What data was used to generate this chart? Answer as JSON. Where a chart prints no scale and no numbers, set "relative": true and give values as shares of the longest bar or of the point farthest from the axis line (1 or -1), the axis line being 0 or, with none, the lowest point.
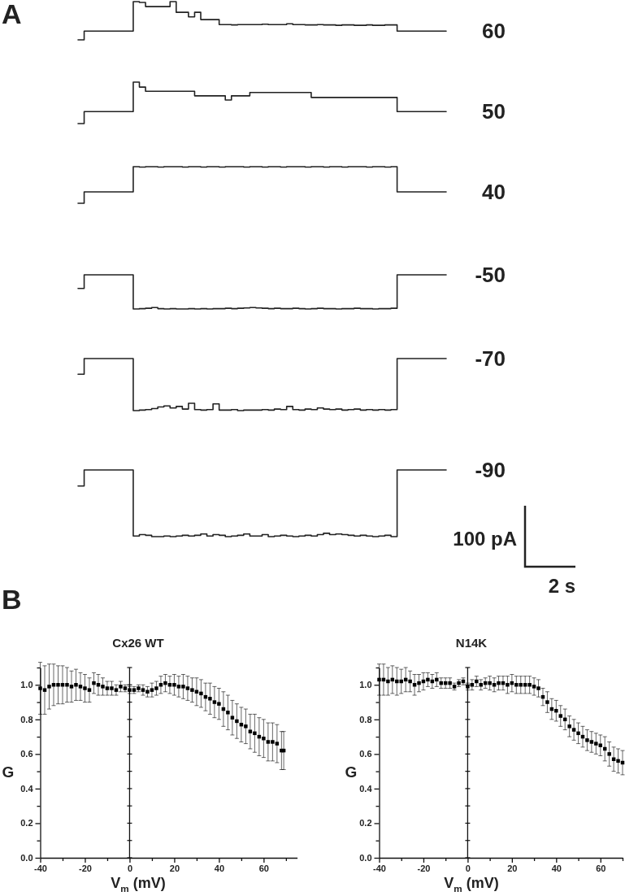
{
  "chart_data": [
    {
      "type": "step",
      "relative": true,
      "annotations": [
        "A"
      ],
      "categories": [
        null,
        null,
        null,
        null,
        null,
        null,
        null,
        null,
        null,
        null,
        null,
        null,
        null,
        null,
        null,
        null,
        null,
        null,
        null,
        null,
        null,
        null,
        null,
        null,
        null,
        null,
        null,
        null,
        null,
        null,
        null,
        null,
        null,
        null,
        null,
        null,
        null,
        null,
        null,
        null,
        null,
        null,
        null,
        null,
        null,
        null,
        null,
        null,
        null,
        null,
        null,
        null,
        null,
        null,
        null,
        null,
        null,
        null,
        null,
        null,
        null
      ],
      "series": [
        {
          "name": "60",
          "color": "#222222",
          "values": [
            0,
            0.23,
            0.23,
            0.23,
            0.23,
            0.23,
            0.23,
            0.23,
            0.23,
            1.0,
            0.98,
            0.87,
            0.87,
            0.87,
            0.87,
            1.0,
            0.72,
            0.72,
            0.6,
            0.72,
            0.53,
            0.53,
            0.53,
            0.4,
            0.4,
            0.39,
            0.4,
            0.4,
            0.4,
            0.4,
            0.41,
            0.4,
            0.4,
            0.4,
            0.42,
            0.4,
            0.4,
            0.39,
            0.39,
            0.4,
            0.39,
            0.39,
            0.38,
            0.39,
            0.39,
            0.38,
            0.38,
            0.39,
            0.38,
            0.38,
            0.39,
            0.39,
            0.23,
            0.23,
            0.23,
            0.23,
            0.23,
            0.23,
            0.23,
            0.23,
            0.23
          ]
        }
      ]
    },
    {
      "type": "step",
      "relative": true,
      "categories": [
        null,
        null,
        null,
        null,
        null,
        null,
        null,
        null,
        null,
        null,
        null,
        null,
        null,
        null,
        null,
        null,
        null,
        null,
        null,
        null,
        null,
        null,
        null,
        null,
        null,
        null,
        null,
        null,
        null,
        null,
        null,
        null,
        null,
        null,
        null,
        null,
        null,
        null,
        null,
        null,
        null,
        null,
        null,
        null,
        null,
        null,
        null,
        null,
        null,
        null,
        null,
        null,
        null,
        null,
        null,
        null,
        null,
        null,
        null,
        null,
        null
      ],
      "series": [
        {
          "name": "50",
          "color": "#222222",
          "values": [
            0,
            0.29,
            0.29,
            0.29,
            0.29,
            0.29,
            0.29,
            0.29,
            0.29,
            1.0,
            0.88,
            0.78,
            0.78,
            0.78,
            0.78,
            0.78,
            0.78,
            0.78,
            0.78,
            0.67,
            0.67,
            0.67,
            0.67,
            0.67,
            0.57,
            0.67,
            0.67,
            0.67,
            0.75,
            0.75,
            0.75,
            0.75,
            0.75,
            0.75,
            0.75,
            0.75,
            0.75,
            0.75,
            0.63,
            0.63,
            0.63,
            0.63,
            0.63,
            0.63,
            0.63,
            0.63,
            0.63,
            0.63,
            0.63,
            0.63,
            0.63,
            0.63,
            0.29,
            0.29,
            0.29,
            0.29,
            0.29,
            0.29,
            0.29,
            0.29,
            0.29
          ]
        }
      ]
    },
    {
      "type": "step",
      "relative": true,
      "categories": [
        null,
        null,
        null,
        null,
        null,
        null,
        null,
        null,
        null,
        null,
        null,
        null,
        null,
        null,
        null,
        null,
        null,
        null,
        null,
        null,
        null,
        null,
        null,
        null,
        null,
        null,
        null,
        null,
        null,
        null,
        null,
        null,
        null,
        null,
        null,
        null,
        null,
        null,
        null,
        null,
        null,
        null,
        null,
        null,
        null,
        null,
        null,
        null,
        null,
        null,
        null,
        null,
        null,
        null,
        null,
        null,
        null,
        null,
        null,
        null,
        null
      ],
      "series": [
        {
          "name": "40",
          "color": "#222222",
          "values": [
            0,
            0.31,
            0.31,
            0.31,
            0.31,
            0.31,
            0.31,
            0.31,
            0.31,
            1,
            0.99,
            1,
            1,
            0.99,
            1,
            1,
            1,
            0.99,
            1,
            1,
            0.99,
            1,
            1,
            0.99,
            1,
            1,
            1,
            0.99,
            1,
            1,
            0.99,
            1,
            1,
            0.99,
            1,
            1,
            1,
            0.99,
            1,
            1,
            0.99,
            1,
            1,
            0.99,
            1,
            1,
            1,
            0.99,
            1,
            1,
            0.99,
            1,
            0.31,
            0.31,
            0.31,
            0.31,
            0.31,
            0.31,
            0.31,
            0.31,
            0.31
          ]
        }
      ]
    },
    {
      "type": "step",
      "relative": true,
      "categories": [
        null,
        null,
        null,
        null,
        null,
        null,
        null,
        null,
        null,
        null,
        null,
        null,
        null,
        null,
        null,
        null,
        null,
        null,
        null,
        null,
        null,
        null,
        null,
        null,
        null,
        null,
        null,
        null,
        null,
        null,
        null,
        null,
        null,
        null,
        null,
        null,
        null,
        null,
        null,
        null,
        null,
        null,
        null,
        null,
        null,
        null,
        null,
        null,
        null,
        null,
        null,
        null,
        null,
        null,
        null,
        null,
        null,
        null,
        null,
        null,
        null
      ],
      "series": [
        {
          "name": "-50",
          "color": "#222222",
          "values": [
            0.6,
            1,
            1,
            1,
            1,
            1,
            1,
            1,
            1,
            0,
            0.01,
            0.02,
            0.04,
            0.01,
            0,
            0.01,
            0,
            0,
            0.01,
            0,
            0.01,
            0,
            0.01,
            0.01,
            0.02,
            0.01,
            0.02,
            0.03,
            0.04,
            0.03,
            0.02,
            0.01,
            0.02,
            0.01,
            0.01,
            0.02,
            0.01,
            0,
            0.01,
            0.02,
            0.01,
            0.01,
            0,
            0.01,
            0.01,
            0.02,
            0.01,
            0.01,
            0,
            0.01,
            0.01,
            0.02,
            1,
            1,
            1,
            1,
            1,
            1,
            1,
            1,
            1
          ]
        }
      ]
    },
    {
      "type": "step",
      "relative": true,
      "categories": [
        null,
        null,
        null,
        null,
        null,
        null,
        null,
        null,
        null,
        null,
        null,
        null,
        null,
        null,
        null,
        null,
        null,
        null,
        null,
        null,
        null,
        null,
        null,
        null,
        null,
        null,
        null,
        null,
        null,
        null,
        null,
        null,
        null,
        null,
        null,
        null,
        null,
        null,
        null,
        null,
        null,
        null,
        null,
        null,
        null,
        null,
        null,
        null,
        null,
        null,
        null,
        null,
        null,
        null,
        null,
        null,
        null,
        null,
        null,
        null,
        null
      ],
      "series": [
        {
          "name": "-70",
          "color": "#222222",
          "values": [
            0.7,
            1,
            1,
            1,
            1,
            1,
            1,
            1,
            1,
            0,
            0.01,
            0.02,
            0.04,
            0.07,
            0.09,
            0.05,
            0.08,
            0.03,
            0.14,
            0.02,
            0.01,
            0.02,
            0.13,
            0.01,
            0.01,
            0.02,
            0,
            0.01,
            0.01,
            0.01,
            0.02,
            0.01,
            0.03,
            0.02,
            0.08,
            0.02,
            0.01,
            0.03,
            0.02,
            0.05,
            0.03,
            0.02,
            0.03,
            0.01,
            0.02,
            0.03,
            0.01,
            0.02,
            0.01,
            0.02,
            0.01,
            0.02,
            1,
            1,
            1,
            1,
            1,
            1,
            1,
            1,
            1
          ]
        }
      ]
    },
    {
      "type": "step",
      "relative": true,
      "annotations": [
        "100 pA",
        "2 s"
      ],
      "categories": [
        null,
        null,
        null,
        null,
        null,
        null,
        null,
        null,
        null,
        null,
        null,
        null,
        null,
        null,
        null,
        null,
        null,
        null,
        null,
        null,
        null,
        null,
        null,
        null,
        null,
        null,
        null,
        null,
        null,
        null,
        null,
        null,
        null,
        null,
        null,
        null,
        null,
        null,
        null,
        null,
        null,
        null,
        null,
        null,
        null,
        null,
        null,
        null,
        null,
        null,
        null,
        null,
        null,
        null,
        null,
        null,
        null,
        null,
        null,
        null,
        null
      ],
      "series": [
        {
          "name": "-90",
          "color": "#222222",
          "values": [
            0.76,
            1,
            1,
            1,
            1,
            1,
            1,
            1,
            1,
            0.01,
            0.03,
            0.02,
            0,
            0,
            0.01,
            0,
            0.01,
            0.02,
            0.01,
            0.02,
            0.04,
            0.01,
            0.03,
            0.02,
            0,
            0.01,
            0.02,
            0.04,
            0.01,
            0.01,
            0.03,
            0,
            0.01,
            0.02,
            0.01,
            0,
            0.01,
            0.02,
            0.01,
            0.03,
            0.05,
            0.03,
            0.04,
            0.03,
            0.02,
            0.01,
            0.02,
            0.01,
            0,
            0.01,
            0.02,
            0,
            1,
            1,
            1,
            1,
            1,
            1,
            1,
            1,
            1
          ]
        }
      ]
    },
    {
      "type": "scatter",
      "title": "Cx26 WT",
      "xlabel": "V$_{m}$ (mV)",
      "ylabel": "G",
      "annotations": [
        "B"
      ],
      "marker": "square",
      "xlim": [
        -40,
        75
      ],
      "ylim": [
        0,
        1.1
      ],
      "xticks": [
        -40,
        {
          "value": -30,
          "label": null
        },
        -20,
        {
          "value": -10,
          "label": null
        },
        0,
        {
          "value": 10,
          "label": null
        },
        20,
        {
          "value": 30,
          "label": null
        },
        40,
        {
          "value": 50,
          "label": null
        },
        60,
        {
          "value": 70,
          "label": null
        }
      ],
      "yticks": [
        {
          "value": 0,
          "label": "0.0"
        },
        {
          "value": 0.1,
          "label": null
        },
        0.2,
        {
          "value": 0.3,
          "label": null
        },
        0.4,
        {
          "value": 0.5,
          "label": null
        },
        0.6,
        {
          "value": 0.7,
          "label": null
        },
        0.8,
        {
          "value": 0.9,
          "label": null
        },
        {
          "value": 1,
          "label": "1.0"
        },
        {
          "value": 1.1,
          "label": null
        }
      ],
      "ref_lines": [
        {
          "axis": "x",
          "value": 0
        }
      ],
      "x": [
        -40,
        -38,
        -36,
        -34,
        -32,
        -30,
        -28,
        -26,
        -24,
        -22,
        -20,
        -18,
        -16,
        -14,
        -12,
        -10,
        -8,
        -6,
        -4,
        -2,
        0,
        2,
        4,
        6,
        8,
        10,
        12,
        14,
        16,
        18,
        20,
        22,
        24,
        26,
        28,
        30,
        32,
        34,
        36,
        38,
        40,
        42,
        44,
        46,
        48,
        50,
        52,
        54,
        56,
        58,
        60,
        62,
        64,
        66,
        68,
        69
      ],
      "series": [
        {
          "color": "#000000",
          "values": [
            0.98,
            0.97,
            0.99,
            1.0,
            1.0,
            1.0,
            1.0,
            0.99,
            1.0,
            0.99,
            0.98,
            0.97,
            1.01,
            1.0,
            0.99,
            0.98,
            0.98,
            0.97,
            0.99,
            0.98,
            0.97,
            0.97,
            0.98,
            0.97,
            0.96,
            0.97,
            0.98,
            1.0,
            1.01,
            1.0,
            1.0,
            0.99,
            0.99,
            0.98,
            0.97,
            0.96,
            0.95,
            0.93,
            0.92,
            0.9,
            0.89,
            0.86,
            0.84,
            0.81,
            0.79,
            0.77,
            0.76,
            0.73,
            0.72,
            0.7,
            0.69,
            0.67,
            0.67,
            0.66,
            0.62,
            0.62
          ],
          "errors": [
            0.15,
            0.14,
            0.13,
            0.12,
            0.11,
            0.11,
            0.1,
            0.09,
            0.09,
            0.08,
            0.08,
            0.07,
            0.06,
            0.06,
            0.05,
            0.04,
            0.04,
            0.03,
            0.03,
            0.02,
            0.02,
            0.02,
            0.02,
            0.03,
            0.03,
            0.04,
            0.04,
            0.05,
            0.05,
            0.05,
            0.06,
            0.06,
            0.07,
            0.07,
            0.07,
            0.08,
            0.08,
            0.08,
            0.09,
            0.09,
            0.09,
            0.1,
            0.1,
            0.1,
            0.1,
            0.1,
            0.1,
            0.1,
            0.11,
            0.11,
            0.11,
            0.11,
            0.11,
            0.11,
            0.11,
            0.11
          ]
        }
      ]
    },
    {
      "type": "scatter",
      "title": "N14K",
      "xlabel": "V$_{m}$ (mV)",
      "ylabel": "G",
      "marker": "square",
      "xlim": [
        -40,
        70
      ],
      "ylim": [
        0,
        1.1
      ],
      "xticks": [
        -40,
        {
          "value": -30,
          "label": null
        },
        -20,
        {
          "value": -10,
          "label": null
        },
        0,
        {
          "value": 10,
          "label": null
        },
        20,
        {
          "value": 30,
          "label": null
        },
        40,
        {
          "value": 50,
          "label": null
        },
        60,
        {
          "value": 70,
          "label": null
        }
      ],
      "yticks": [
        {
          "value": 0,
          "label": "0.0"
        },
        {
          "value": 0.1,
          "label": null
        },
        0.2,
        {
          "value": 0.3,
          "label": null
        },
        0.4,
        {
          "value": 0.5,
          "label": null
        },
        0.6,
        {
          "value": 0.7,
          "label": null
        },
        0.8,
        {
          "value": 0.9,
          "label": null
        },
        {
          "value": 1,
          "label": "1.0"
        },
        {
          "value": 1.1,
          "label": null
        }
      ],
      "ref_lines": [
        {
          "axis": "x",
          "value": 0
        }
      ],
      "x": [
        -40,
        -38,
        -36,
        -34,
        -32,
        -30,
        -28,
        -26,
        -24,
        -22,
        -20,
        -18,
        -16,
        -14,
        -12,
        -10,
        -8,
        -6,
        -4,
        -2,
        0,
        2,
        4,
        6,
        8,
        10,
        12,
        14,
        16,
        18,
        20,
        22,
        24,
        26,
        28,
        30,
        32,
        34,
        36,
        38,
        40,
        42,
        44,
        46,
        48,
        50,
        52,
        54,
        56,
        58,
        60,
        62,
        64,
        66,
        68,
        70
      ],
      "series": [
        {
          "color": "#000000",
          "values": [
            1.03,
            1.03,
            1.02,
            1.03,
            1.02,
            1.02,
            1.03,
            1.02,
            1.0,
            1.01,
            1.02,
            1.03,
            1.02,
            1.03,
            1.01,
            1.01,
            1.01,
            0.99,
            1.01,
            1.02,
            0.99,
            1.0,
            1.02,
            1.0,
            1.01,
            1.01,
            1.0,
            1.01,
            1.01,
            1.0,
            1.01,
            1.0,
            1.0,
            1.0,
            1.0,
            0.99,
            0.98,
            0.93,
            0.9,
            0.86,
            0.85,
            0.82,
            0.8,
            0.76,
            0.74,
            0.72,
            0.7,
            0.68,
            0.67,
            0.66,
            0.65,
            0.63,
            0.6,
            0.57,
            0.56,
            0.55
          ],
          "errors": [
            0.09,
            0.09,
            0.08,
            0.08,
            0.08,
            0.07,
            0.07,
            0.06,
            0.06,
            0.05,
            0.05,
            0.04,
            0.04,
            0.04,
            0.03,
            0.03,
            0.03,
            0.02,
            0.02,
            0.02,
            0.02,
            0.03,
            0.03,
            0.03,
            0.03,
            0.04,
            0.04,
            0.04,
            0.04,
            0.05,
            0.05,
            0.05,
            0.05,
            0.05,
            0.05,
            0.05,
            0.05,
            0.05,
            0.06,
            0.06,
            0.06,
            0.06,
            0.06,
            0.06,
            0.06,
            0.06,
            0.06,
            0.06,
            0.06,
            0.06,
            0.06,
            0.07,
            0.07,
            0.07,
            0.07,
            0.07
          ]
        }
      ]
    }
  ]
}
